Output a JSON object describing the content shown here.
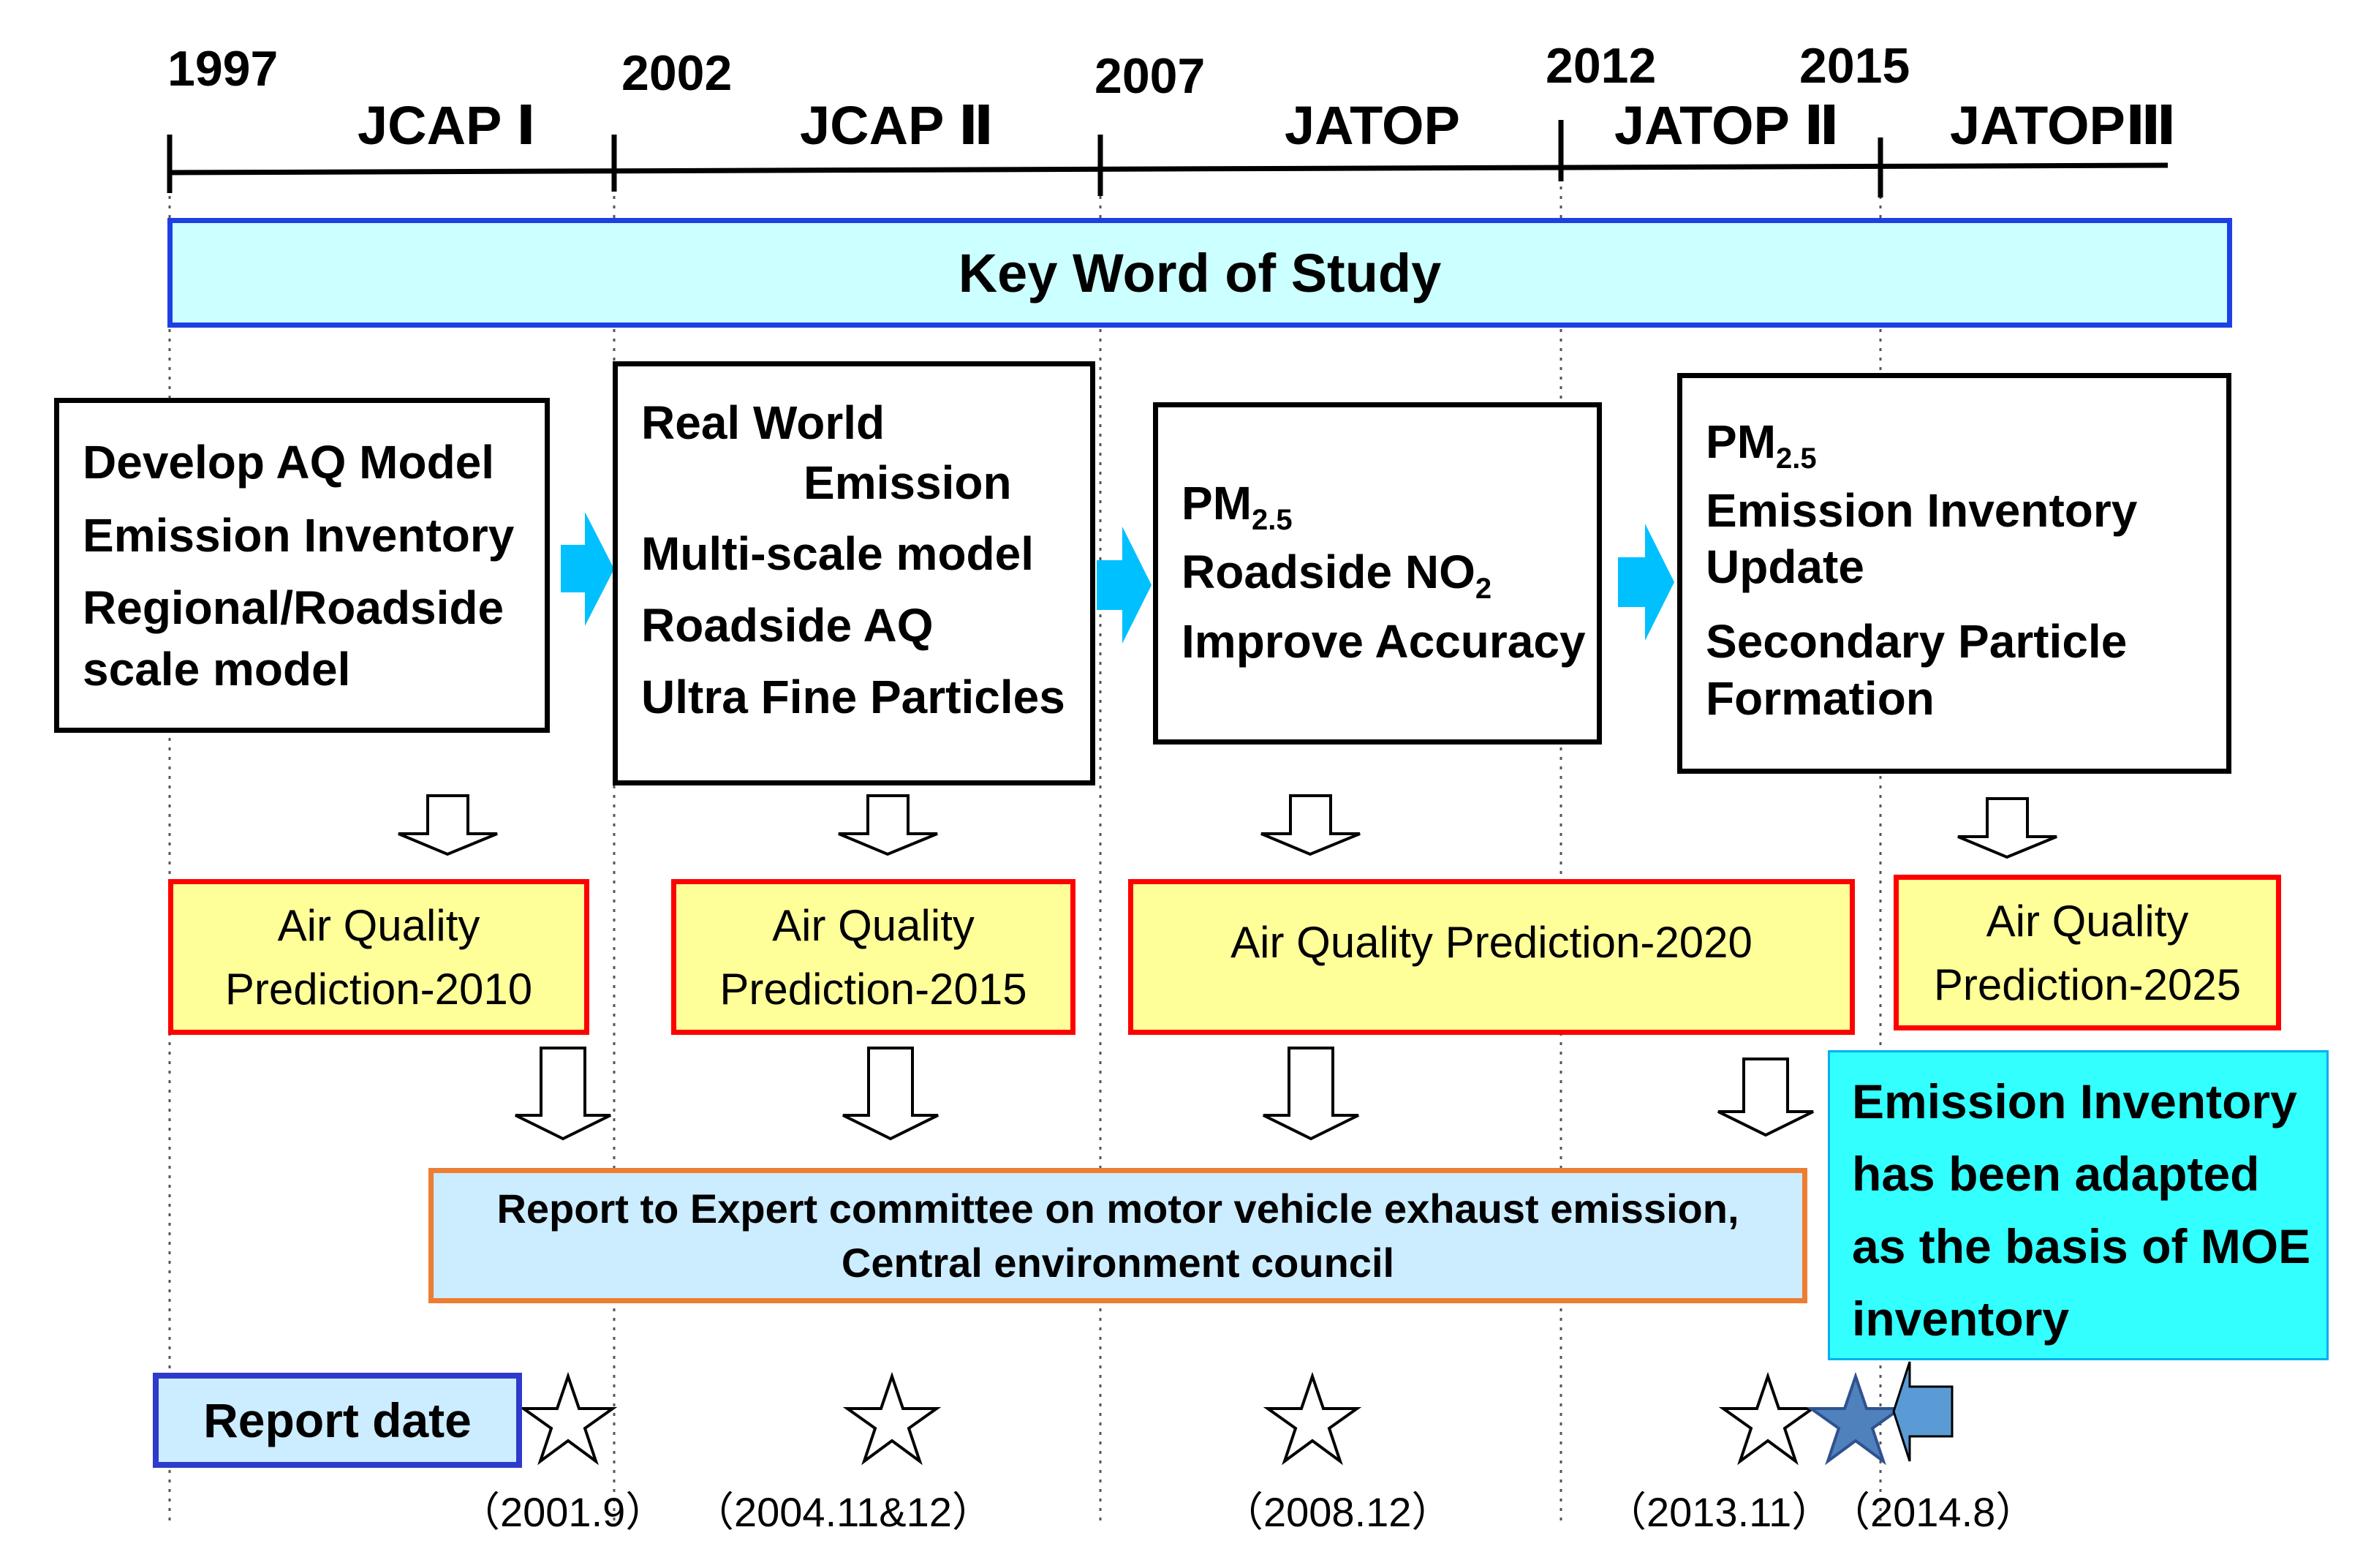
{
  "timeline": {
    "years": [
      "1997",
      "2002",
      "2007",
      "2012",
      "2015"
    ],
    "programs": [
      "JCAP Ⅰ",
      "JCAP Ⅱ",
      "JATOP",
      "JATOP Ⅱ",
      "JATOPⅢ"
    ]
  },
  "keyword_title": "Key Word of Study",
  "study_boxes": [
    {
      "lines": [
        "Develop AQ  Model",
        "Emission Inventory",
        "Regional/Roadside",
        "scale model"
      ]
    },
    {
      "lines": [
        "Real World",
        "Emission",
        "Multi-scale model",
        "Roadside AQ",
        "Ultra Fine Particles"
      ]
    },
    {
      "pm_base": "PM",
      "pm_sub": "2.5",
      "no2_base": "Roadside NO",
      "no2_sub": "2",
      "extra": "Improve Accuracy"
    },
    {
      "pm_base": "PM",
      "pm_sub": "2.5",
      "lines": [
        "Emission Inventory",
        "Update",
        "Secondary Particle",
        "Formation"
      ]
    }
  ],
  "predictions": [
    {
      "line1": "Air Quality",
      "line2": "Prediction-2010"
    },
    {
      "line1": "Air Quality",
      "line2": "Prediction-2015"
    },
    {
      "line1": "Air Quality Prediction-2020"
    },
    {
      "line1": "Air Quality",
      "line2": "Prediction-2025"
    }
  ],
  "report": {
    "line1": "Report to Expert committee on motor vehicle exhaust emission,",
    "line2": "Central environment council"
  },
  "note": {
    "lines": [
      "Emission Inventory",
      "has been adapted",
      "as the basis of MOE",
      "inventory"
    ]
  },
  "report_date_label": "Report date",
  "report_dates": [
    "（2001.9）",
    "（2004.11&12）",
    "（2008.12）",
    "（2013.11）",
    "（2014.8）"
  ],
  "colors": {
    "keyword_fill": "#ccffff",
    "keyword_border": "#1f3fe6",
    "prediction_fill": "#ffff99",
    "prediction_border": "#ff0000",
    "report_fill": "#ccecff",
    "report_border": "#ed7d31",
    "note_fill": "#33ffff",
    "arrow_cyan": "#00c0ff",
    "star_blue": "#4f81bd"
  }
}
